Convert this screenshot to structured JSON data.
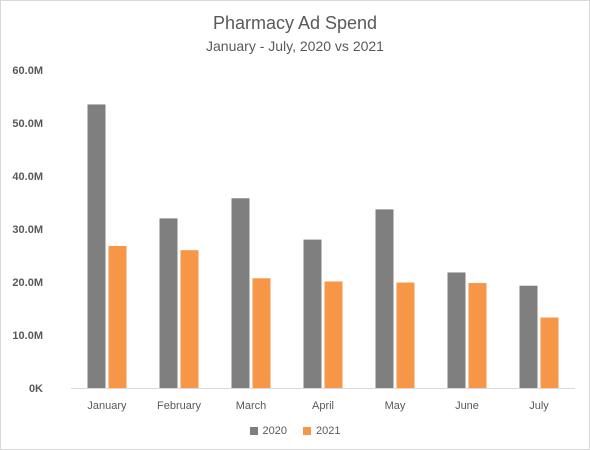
{
  "chart_data": {
    "type": "bar",
    "title": "Pharmacy Ad Spend",
    "subtitle": "January - July, 2020 vs 2021",
    "xlabel": "",
    "ylabel": "",
    "categories": [
      "January",
      "February",
      "March",
      "April",
      "May",
      "June",
      "July"
    ],
    "series": [
      {
        "name": "2020",
        "color": "#7f7f7f",
        "values": [
          53.5,
          32.0,
          35.8,
          28.0,
          33.7,
          21.8,
          19.3
        ]
      },
      {
        "name": "2021",
        "color": "#f79646",
        "values": [
          26.8,
          26.0,
          20.7,
          20.1,
          19.9,
          19.8,
          13.3
        ]
      }
    ],
    "ylim": [
      0,
      60
    ],
    "yticks": [
      0,
      10,
      20,
      30,
      40,
      50,
      60
    ],
    "ytick_labels": [
      "0K",
      "10.0M",
      "20.0M",
      "30.0M",
      "40.0M",
      "50.0M",
      "60.0M"
    ],
    "grid": false,
    "legend_position": "bottom"
  }
}
